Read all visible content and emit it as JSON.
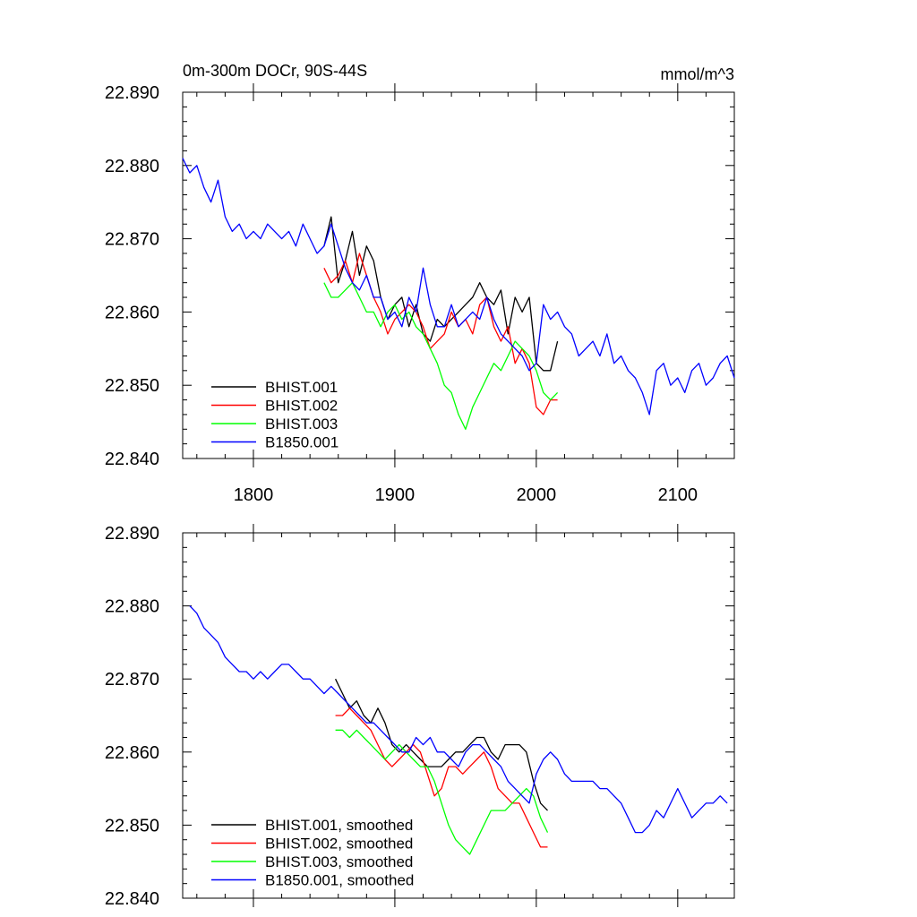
{
  "chart_data": [
    {
      "type": "line",
      "title_left": "0m-300m DOCr, 90S-44S",
      "title_right": "mmol/m^3",
      "xlim": [
        1750,
        2140
      ],
      "ylim": [
        22.84,
        22.89
      ],
      "x_ticks": [
        1800,
        1900,
        2000,
        2100
      ],
      "x_tick_labels": [
        "1800",
        "1900",
        "2000",
        "2100"
      ],
      "y_ticks": [
        22.84,
        22.85,
        22.86,
        22.87,
        22.88,
        22.89
      ],
      "y_tick_labels": [
        "22.840",
        "22.850",
        "22.860",
        "22.870",
        "22.880",
        "22.890"
      ],
      "legend_position": "bottom-left",
      "series": [
        {
          "name": "BHIST.001",
          "color": "#000000",
          "x": [
            1850,
            1855,
            1860,
            1865,
            1870,
            1875,
            1880,
            1885,
            1890,
            1895,
            1900,
            1905,
            1910,
            1915,
            1920,
            1925,
            1930,
            1935,
            1940,
            1945,
            1950,
            1955,
            1960,
            1965,
            1970,
            1975,
            1980,
            1985,
            1990,
            1995,
            2000,
            2005,
            2010,
            2015
          ],
          "y": [
            22.869,
            22.873,
            22.864,
            22.867,
            22.871,
            22.865,
            22.869,
            22.867,
            22.862,
            22.859,
            22.861,
            22.862,
            22.858,
            22.861,
            22.857,
            22.856,
            22.859,
            22.858,
            22.859,
            22.86,
            22.861,
            22.862,
            22.864,
            22.862,
            22.861,
            22.863,
            22.857,
            22.862,
            22.86,
            22.862,
            22.853,
            22.852,
            22.852,
            22.856
          ]
        },
        {
          "name": "BHIST.002",
          "color": "#ff0000",
          "x": [
            1850,
            1855,
            1860,
            1865,
            1870,
            1875,
            1880,
            1885,
            1890,
            1895,
            1900,
            1905,
            1910,
            1915,
            1920,
            1925,
            1930,
            1935,
            1940,
            1945,
            1950,
            1955,
            1960,
            1965,
            1970,
            1975,
            1980,
            1985,
            1990,
            1995,
            2000,
            2005,
            2010,
            2015
          ],
          "y": [
            22.866,
            22.864,
            22.865,
            22.867,
            22.864,
            22.868,
            22.865,
            22.862,
            22.86,
            22.857,
            22.859,
            22.86,
            22.861,
            22.86,
            22.858,
            22.855,
            22.856,
            22.857,
            22.86,
            22.858,
            22.859,
            22.857,
            22.861,
            22.862,
            22.858,
            22.856,
            22.858,
            22.853,
            22.855,
            22.853,
            22.847,
            22.846,
            22.848,
            22.848
          ]
        },
        {
          "name": "BHIST.003",
          "color": "#00ff00",
          "x": [
            1850,
            1855,
            1860,
            1865,
            1870,
            1875,
            1880,
            1885,
            1890,
            1895,
            1900,
            1905,
            1910,
            1915,
            1920,
            1925,
            1930,
            1935,
            1940,
            1945,
            1950,
            1955,
            1960,
            1965,
            1970,
            1975,
            1980,
            1985,
            1990,
            1995,
            2000,
            2005,
            2010,
            2015
          ],
          "y": [
            22.864,
            22.862,
            22.862,
            22.863,
            22.864,
            22.862,
            22.86,
            22.86,
            22.858,
            22.86,
            22.861,
            22.859,
            22.86,
            22.858,
            22.857,
            22.855,
            22.853,
            22.85,
            22.849,
            22.846,
            22.844,
            22.847,
            22.849,
            22.851,
            22.853,
            22.852,
            22.854,
            22.856,
            22.855,
            22.854,
            22.852,
            22.849,
            22.848,
            22.849
          ]
        },
        {
          "name": "B1850.001",
          "color": "#0000ff",
          "x": [
            1750,
            1755,
            1760,
            1765,
            1770,
            1775,
            1780,
            1785,
            1790,
            1795,
            1800,
            1805,
            1810,
            1815,
            1820,
            1825,
            1830,
            1835,
            1840,
            1845,
            1850,
            1855,
            1860,
            1865,
            1870,
            1875,
            1880,
            1885,
            1890,
            1895,
            1900,
            1905,
            1910,
            1915,
            1920,
            1925,
            1930,
            1935,
            1940,
            1945,
            1950,
            1955,
            1960,
            1965,
            1970,
            1975,
            1980,
            1985,
            1990,
            1995,
            2000,
            2005,
            2010,
            2015,
            2020,
            2025,
            2030,
            2035,
            2040,
            2045,
            2050,
            2055,
            2060,
            2065,
            2070,
            2075,
            2080,
            2085,
            2090,
            2095,
            2100,
            2105,
            2110,
            2115,
            2120,
            2125,
            2130,
            2135,
            2140
          ],
          "y": [
            22.881,
            22.879,
            22.88,
            22.877,
            22.875,
            22.878,
            22.873,
            22.871,
            22.872,
            22.87,
            22.871,
            22.87,
            22.872,
            22.871,
            22.87,
            22.871,
            22.869,
            22.872,
            22.87,
            22.868,
            22.869,
            22.872,
            22.869,
            22.866,
            22.864,
            22.863,
            22.865,
            22.862,
            22.862,
            22.859,
            22.86,
            22.858,
            22.862,
            22.86,
            22.866,
            22.861,
            22.858,
            22.858,
            22.861,
            22.858,
            22.859,
            22.86,
            22.859,
            22.862,
            22.859,
            22.857,
            22.856,
            22.855,
            22.854,
            22.852,
            22.853,
            22.861,
            22.859,
            22.86,
            22.858,
            22.857,
            22.854,
            22.855,
            22.856,
            22.854,
            22.857,
            22.853,
            22.854,
            22.852,
            22.851,
            22.849,
            22.846,
            22.852,
            22.853,
            22.85,
            22.851,
            22.849,
            22.852,
            22.853,
            22.85,
            22.851,
            22.853,
            22.854,
            22.851
          ]
        }
      ]
    },
    {
      "type": "line",
      "title_left": "",
      "title_right": "",
      "xlim": [
        1750,
        2140
      ],
      "ylim": [
        22.84,
        22.89
      ],
      "x_ticks": [
        1800,
        1900,
        2000,
        2100
      ],
      "x_tick_labels": [],
      "y_ticks": [
        22.84,
        22.85,
        22.86,
        22.87,
        22.88,
        22.89
      ],
      "y_tick_labels": [
        "22.840",
        "22.850",
        "22.860",
        "22.870",
        "22.880",
        "22.890"
      ],
      "legend_position": "bottom-left",
      "series": [
        {
          "name": "BHIST.001, smoothed",
          "color": "#000000",
          "x": [
            1858,
            1863,
            1868,
            1873,
            1878,
            1883,
            1888,
            1893,
            1898,
            1903,
            1908,
            1913,
            1918,
            1923,
            1928,
            1933,
            1938,
            1943,
            1948,
            1953,
            1958,
            1963,
            1968,
            1973,
            1978,
            1983,
            1988,
            1993,
            1998,
            2003,
            2008
          ],
          "y": [
            22.87,
            22.868,
            22.866,
            22.867,
            22.865,
            22.864,
            22.866,
            22.864,
            22.861,
            22.86,
            22.861,
            22.86,
            22.859,
            22.858,
            22.858,
            22.858,
            22.859,
            22.86,
            22.86,
            22.861,
            22.862,
            22.862,
            22.86,
            22.859,
            22.861,
            22.861,
            22.861,
            22.86,
            22.856,
            22.853,
            22.852
          ]
        },
        {
          "name": "BHIST.002, smoothed",
          "color": "#ff0000",
          "x": [
            1858,
            1863,
            1868,
            1873,
            1878,
            1883,
            1888,
            1893,
            1898,
            1903,
            1908,
            1913,
            1918,
            1923,
            1928,
            1933,
            1938,
            1943,
            1948,
            1953,
            1958,
            1963,
            1968,
            1973,
            1978,
            1983,
            1988,
            1993,
            1998,
            2003,
            2008
          ],
          "y": [
            22.865,
            22.865,
            22.866,
            22.865,
            22.864,
            22.863,
            22.861,
            22.859,
            22.858,
            22.859,
            22.86,
            22.861,
            22.86,
            22.857,
            22.854,
            22.855,
            22.858,
            22.858,
            22.857,
            22.858,
            22.859,
            22.86,
            22.858,
            22.855,
            22.854,
            22.853,
            22.853,
            22.851,
            22.849,
            22.847,
            22.847
          ]
        },
        {
          "name": "BHIST.003, smoothed",
          "color": "#00ff00",
          "x": [
            1858,
            1863,
            1868,
            1873,
            1878,
            1883,
            1888,
            1893,
            1898,
            1903,
            1908,
            1913,
            1918,
            1923,
            1928,
            1933,
            1938,
            1943,
            1948,
            1953,
            1958,
            1963,
            1968,
            1973,
            1978,
            1983,
            1988,
            1993,
            1998,
            2003,
            2008
          ],
          "y": [
            22.863,
            22.863,
            22.862,
            22.863,
            22.862,
            22.861,
            22.86,
            22.859,
            22.86,
            22.861,
            22.86,
            22.859,
            22.858,
            22.858,
            22.856,
            22.853,
            22.85,
            22.848,
            22.847,
            22.846,
            22.848,
            22.85,
            22.852,
            22.852,
            22.852,
            22.853,
            22.854,
            22.855,
            22.854,
            22.851,
            22.849
          ]
        },
        {
          "name": "B1850.001, smoothed",
          "color": "#0000ff",
          "x": [
            1755,
            1760,
            1765,
            1770,
            1775,
            1780,
            1785,
            1790,
            1795,
            1800,
            1805,
            1810,
            1815,
            1820,
            1825,
            1830,
            1835,
            1840,
            1845,
            1850,
            1855,
            1860,
            1865,
            1870,
            1875,
            1880,
            1885,
            1890,
            1895,
            1900,
            1905,
            1910,
            1915,
            1920,
            1925,
            1930,
            1935,
            1940,
            1945,
            1950,
            1955,
            1960,
            1965,
            1970,
            1975,
            1980,
            1985,
            1990,
            1995,
            2000,
            2005,
            2010,
            2015,
            2020,
            2025,
            2030,
            2035,
            2040,
            2045,
            2050,
            2055,
            2060,
            2065,
            2070,
            2075,
            2080,
            2085,
            2090,
            2095,
            2100,
            2105,
            2110,
            2115,
            2120,
            2125,
            2130,
            2135
          ],
          "y": [
            22.88,
            22.879,
            22.877,
            22.876,
            22.875,
            22.873,
            22.872,
            22.871,
            22.871,
            22.87,
            22.871,
            22.87,
            22.871,
            22.872,
            22.872,
            22.871,
            22.87,
            22.87,
            22.869,
            22.868,
            22.869,
            22.868,
            22.867,
            22.866,
            22.865,
            22.864,
            22.864,
            22.863,
            22.862,
            22.861,
            22.86,
            22.86,
            22.862,
            22.861,
            22.862,
            22.86,
            22.86,
            22.859,
            22.858,
            22.86,
            22.861,
            22.861,
            22.86,
            22.859,
            22.858,
            22.856,
            22.855,
            22.854,
            22.853,
            22.857,
            22.859,
            22.86,
            22.859,
            22.857,
            22.856,
            22.856,
            22.856,
            22.856,
            22.855,
            22.855,
            22.854,
            22.853,
            22.851,
            22.849,
            22.849,
            22.85,
            22.852,
            22.851,
            22.853,
            22.855,
            22.853,
            22.851,
            22.852,
            22.853,
            22.853,
            22.854,
            22.853
          ]
        }
      ]
    }
  ]
}
